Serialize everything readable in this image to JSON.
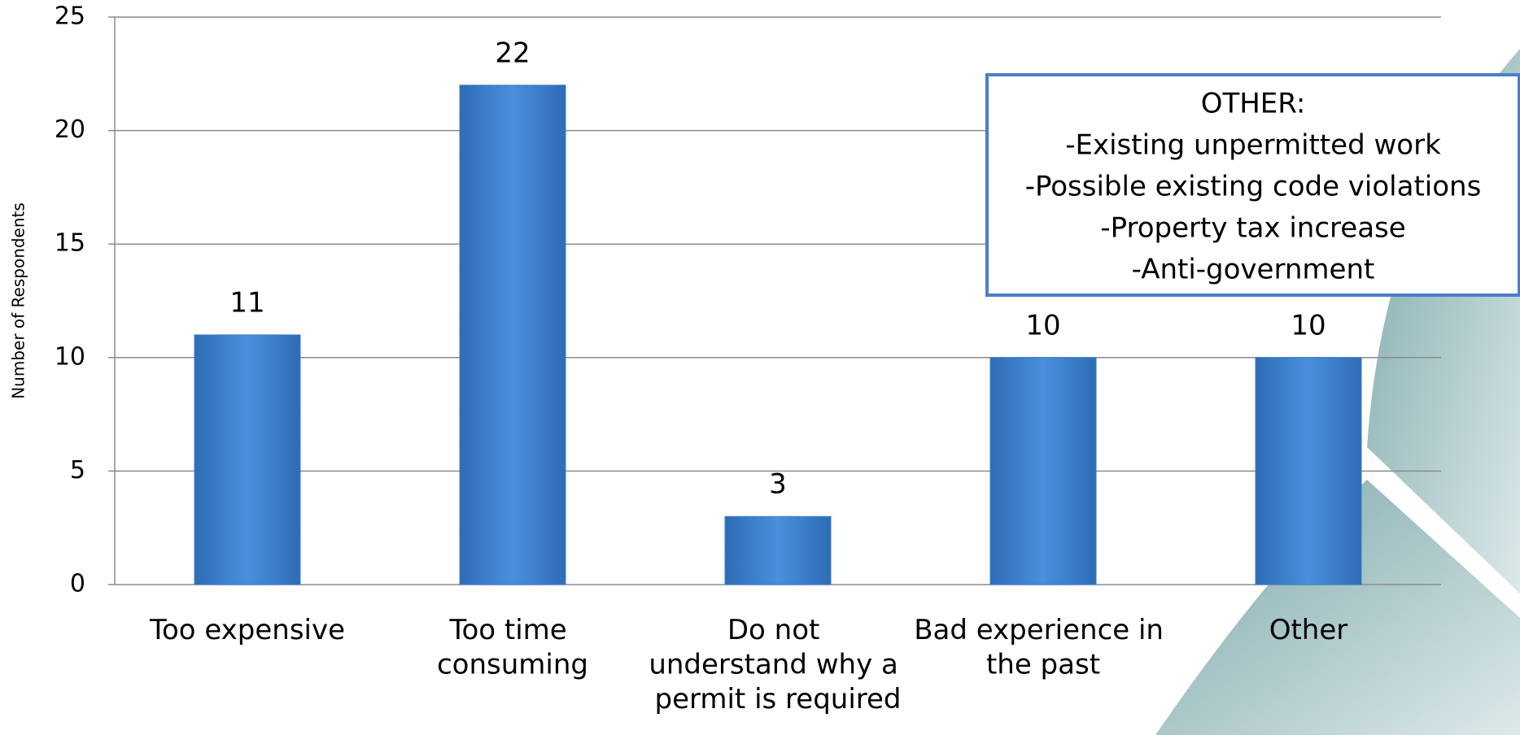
{
  "chart_data": {
    "type": "bar",
    "y_label": "Number of Respondents",
    "categories": [
      "Too expensive",
      "Too time consuming",
      "Do not understand why a permit is required",
      "Bad experience in the past",
      "Other"
    ],
    "values": [
      11,
      22,
      3,
      10,
      10
    ],
    "color": "#3a7fcf",
    "ylim": [
      0,
      25
    ],
    "yticks": [
      0,
      5,
      10,
      15,
      20,
      25
    ],
    "grid": true,
    "annotation": [
      "OTHER:",
      "-Existing unpermitted work",
      "-Possible existing code violations",
      "-Property tax increase",
      "-Anti-government"
    ]
  }
}
